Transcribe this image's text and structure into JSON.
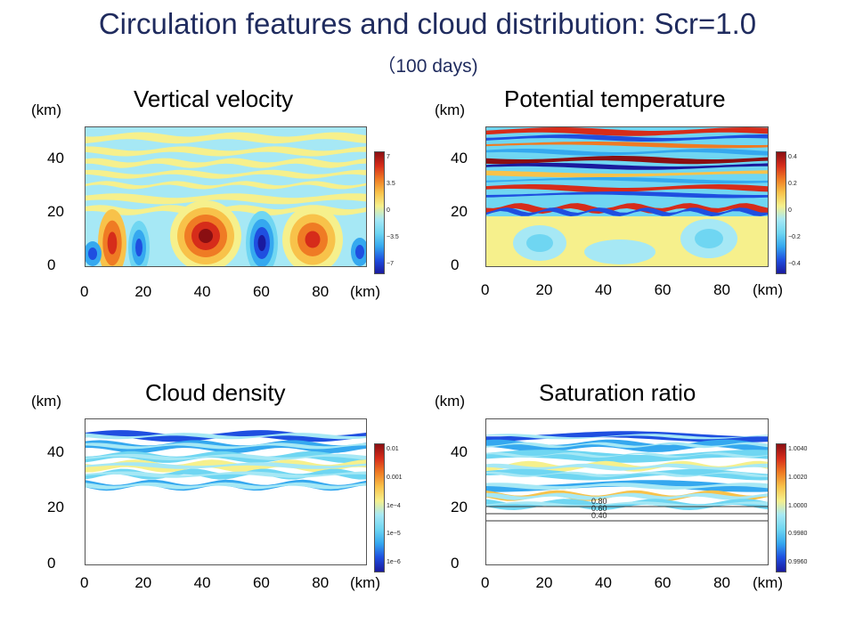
{
  "title": "Circulation features and cloud distribution: Scr=1.0",
  "subtitle": "（100 days)",
  "colors": {
    "title": "#1f2b5e",
    "colormap": [
      "#1a1a9e",
      "#1f4fe0",
      "#35a8ef",
      "#6fd6f2",
      "#a6e8f5",
      "#f6f08c",
      "#f8c24a",
      "#ef7b24",
      "#d62c1a",
      "#8a0f12"
    ]
  },
  "chart_data": [
    {
      "type": "heatmap",
      "title": "Vertical velocity",
      "x_unit": "(km)",
      "y_unit": "(km)",
      "xticks": [
        "0",
        "20",
        "40",
        "60",
        "80"
      ],
      "yticks": [
        "0",
        "20",
        "40"
      ],
      "xlim": [
        0,
        95
      ],
      "ylim": [
        0,
        52
      ],
      "colorbar": [
        "7",
        "3.5",
        "0",
        "−3.5",
        "−7"
      ],
      "pattern": "updrafts"
    },
    {
      "type": "heatmap",
      "title": "Potential temperature",
      "x_unit": "(km)",
      "y_unit": "(km)",
      "xticks": [
        "0",
        "20",
        "40",
        "60",
        "80"
      ],
      "yticks": [
        "0",
        "20",
        "40"
      ],
      "xlim": [
        0,
        95
      ],
      "ylim": [
        0,
        52
      ],
      "colorbar": [
        "0.4",
        "0.2",
        "0",
        "−0.2",
        "−0.4"
      ],
      "pattern": "bands"
    },
    {
      "type": "heatmap",
      "title": "Cloud density",
      "x_unit": "(km)",
      "y_unit": "(km)",
      "xticks": [
        "0",
        "20",
        "40",
        "60",
        "80"
      ],
      "yticks": [
        "0",
        "20",
        "40"
      ],
      "xlim": [
        0,
        95
      ],
      "ylim": [
        0,
        52
      ],
      "colorbar": [
        "0.01",
        "0.001",
        "1e−4",
        "1e−5",
        "1e−6"
      ],
      "pattern": "cloud"
    },
    {
      "type": "heatmap",
      "title": "Saturation ratio",
      "x_unit": "(km)",
      "y_unit": "(km)",
      "xticks": [
        "0",
        "20",
        "40",
        "60",
        "80"
      ],
      "yticks": [
        "0",
        "20",
        "40"
      ],
      "xlim": [
        0,
        95
      ],
      "ylim": [
        0,
        52
      ],
      "colorbar": [
        "1.0040",
        "1.0020",
        "1.0000",
        "0.9980",
        "0.9960"
      ],
      "contour_labels": [
        "0.80",
        "0.60",
        "0.40"
      ],
      "pattern": "saturation"
    }
  ]
}
